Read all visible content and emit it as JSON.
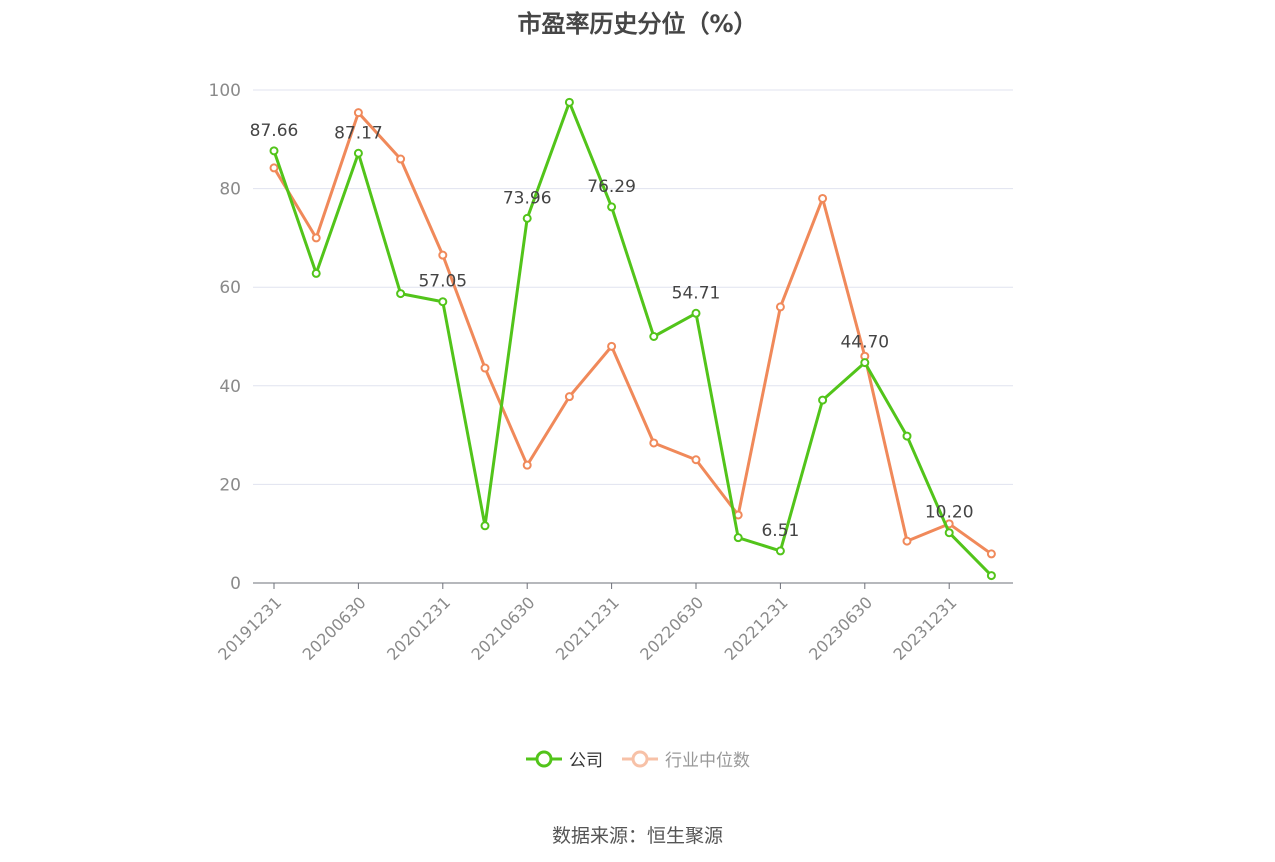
{
  "chart_data": {
    "type": "line",
    "title": "市盈率历史分位（%）",
    "x": [
      "20191231",
      "20200331",
      "20200630",
      "20200930",
      "20201231",
      "20210331",
      "20210630",
      "20210930",
      "20211231",
      "20220331",
      "20220630",
      "20220930",
      "20221231",
      "20230331",
      "20230630",
      "20230930",
      "20231231",
      "20240331"
    ],
    "x_tick_labels": [
      "20191231",
      "20200630",
      "20201231",
      "20210630",
      "20211231",
      "20220630",
      "20221231",
      "20230630",
      "20231231"
    ],
    "series": [
      {
        "name": "公司",
        "color": "#52c41a",
        "values": [
          87.66,
          62.8,
          87.17,
          58.7,
          57.05,
          11.6,
          73.96,
          97.5,
          76.29,
          50.0,
          54.71,
          9.2,
          6.51,
          37.1,
          44.7,
          29.8,
          10.2,
          1.5
        ],
        "labels": {
          "0": "87.66",
          "2": "87.17",
          "4": "57.05",
          "6": "73.96",
          "8": "76.29",
          "10": "54.71",
          "12": "6.51",
          "14": "44.70",
          "16": "10.20"
        }
      },
      {
        "name": "行业中位数",
        "color": "#f0895a",
        "values": [
          84.2,
          70.0,
          95.4,
          86.0,
          66.5,
          43.6,
          23.9,
          37.8,
          48.0,
          28.4,
          25.0,
          13.8,
          56.0,
          78.0,
          46.0,
          8.5,
          12.0,
          5.9
        ]
      }
    ],
    "ylim": [
      0,
      100
    ],
    "y_ticks": [
      0,
      20,
      40,
      60,
      80,
      100
    ],
    "grid": true,
    "legend_position": "bottom",
    "xlabel": "",
    "ylabel": ""
  },
  "source": "数据来源：恒生聚源"
}
